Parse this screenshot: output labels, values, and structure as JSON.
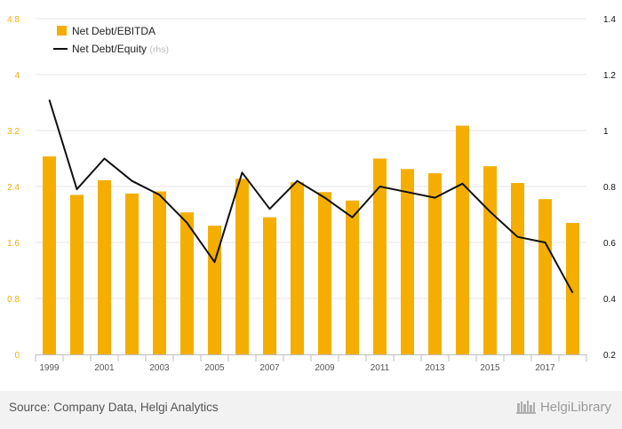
{
  "chart_data": {
    "type": "bar+line",
    "categories": [
      "1999",
      "2000",
      "2001",
      "2002",
      "2003",
      "2004",
      "2005",
      "2006",
      "2007",
      "2008",
      "2009",
      "2010",
      "2011",
      "2012",
      "2013",
      "2014",
      "2015",
      "2016",
      "2017",
      "2018"
    ],
    "x_tick_labels": [
      "1999",
      "2001",
      "2003",
      "2005",
      "2007",
      "2009",
      "2011",
      "2013",
      "2015",
      "2017"
    ],
    "series": [
      {
        "name": "Net Debt/EBITDA",
        "type": "bar",
        "axis": "left",
        "color": "#f5ae00",
        "values": [
          2.83,
          2.28,
          2.49,
          2.3,
          2.33,
          2.03,
          1.84,
          2.51,
          1.96,
          2.46,
          2.32,
          2.2,
          2.8,
          2.65,
          2.59,
          3.27,
          2.69,
          2.45,
          2.22,
          1.88
        ]
      },
      {
        "name": "Net Debt/Equity",
        "name_suffix": "(rhs)",
        "type": "line",
        "axis": "right",
        "color": "#111111",
        "values": [
          1.11,
          0.79,
          0.9,
          0.82,
          0.77,
          0.67,
          0.53,
          0.85,
          0.72,
          0.82,
          0.76,
          0.69,
          0.8,
          0.78,
          0.76,
          0.81,
          0.71,
          0.62,
          0.6,
          0.42
        ]
      }
    ],
    "y_left": {
      "ticks": [
        "0",
        "0.8",
        "1.6",
        "2.4",
        "3.2",
        "4",
        "4.8"
      ],
      "range": [
        0,
        4.8
      ],
      "color": "#f5ae00"
    },
    "y_right": {
      "ticks": [
        "0.2",
        "0.4",
        "0.6",
        "0.8",
        "1",
        "1.2",
        "1.4"
      ],
      "range": [
        0.2,
        1.4
      ],
      "color": "#111111"
    },
    "grid": "horizontal",
    "legend_position": "top-left"
  },
  "footer": {
    "source": "Source: Company Data, Helgi Analytics",
    "brand": "HelgiLibrary"
  }
}
